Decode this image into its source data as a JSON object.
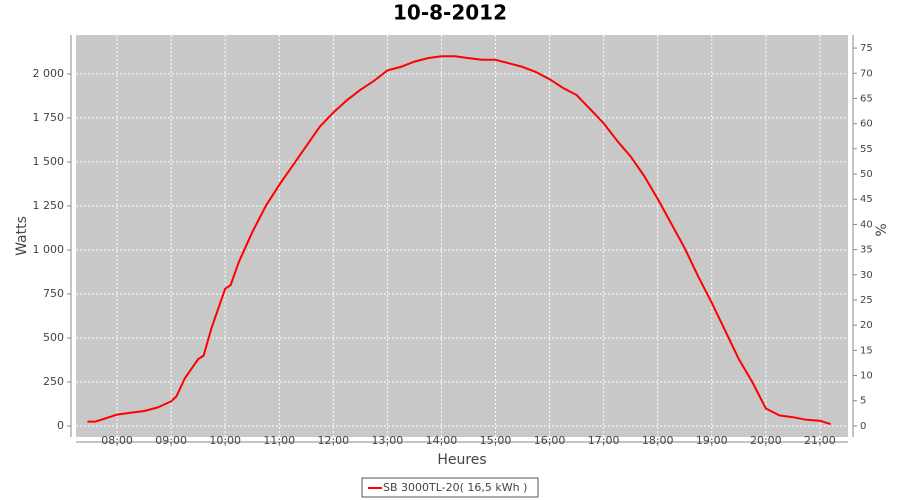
{
  "chart_data": {
    "type": "line",
    "title": "10-8-2012",
    "x_label": "Heures",
    "y_label": "Watts",
    "y2_label": "%",
    "x": [
      7.45,
      7.6,
      7.75,
      8.0,
      8.25,
      8.5,
      8.75,
      9.0,
      9.1,
      9.25,
      9.5,
      9.6,
      9.75,
      10.0,
      10.1,
      10.25,
      10.5,
      10.75,
      11.0,
      11.25,
      11.5,
      11.75,
      12.0,
      12.25,
      12.5,
      12.75,
      13.0,
      13.25,
      13.5,
      13.75,
      14.0,
      14.25,
      14.5,
      14.75,
      15.0,
      15.25,
      15.5,
      15.75,
      16.0,
      16.25,
      16.5,
      16.75,
      17.0,
      17.25,
      17.5,
      17.75,
      18.0,
      18.25,
      18.5,
      18.75,
      19.0,
      19.25,
      19.5,
      19.75,
      20.0,
      20.25,
      20.5,
      20.75,
      21.0,
      21.2
    ],
    "series": [
      {
        "name": "SB 3000TL-20( 16,5 kWh )",
        "color": "#ff0000",
        "values": [
          25,
          25,
          40,
          65,
          75,
          85,
          105,
          140,
          170,
          270,
          380,
          400,
          560,
          780,
          800,
          930,
          1100,
          1250,
          1370,
          1480,
          1590,
          1700,
          1780,
          1850,
          1910,
          1960,
          2020,
          2040,
          2070,
          2090,
          2100,
          2100,
          2090,
          2080,
          2080,
          2060,
          2040,
          2010,
          1970,
          1920,
          1880,
          1800,
          1720,
          1620,
          1530,
          1420,
          1290,
          1150,
          1010,
          850,
          700,
          540,
          380,
          250,
          100,
          60,
          50,
          35,
          30,
          10
        ]
      }
    ],
    "xlim": [
      7.24,
      21.52
    ],
    "xticks": [
      {
        "value": 8,
        "label": "08:00"
      },
      {
        "value": 9,
        "label": "09:00"
      },
      {
        "value": 10,
        "label": "10:00"
      },
      {
        "value": 11,
        "label": "11:00"
      },
      {
        "value": 12,
        "label": "12:00"
      },
      {
        "value": 13,
        "label": "13:00"
      },
      {
        "value": 14,
        "label": "14:00"
      },
      {
        "value": 15,
        "label": "15:00"
      },
      {
        "value": 16,
        "label": "16:00"
      },
      {
        "value": 17,
        "label": "17:00"
      },
      {
        "value": 18,
        "label": "18:00"
      },
      {
        "value": 19,
        "label": "19:00"
      },
      {
        "value": 20,
        "label": "20:00"
      },
      {
        "value": 21,
        "label": "21:00"
      }
    ],
    "ylim": [
      -62.5,
      2221
    ],
    "yticks": [
      0,
      250,
      500,
      750,
      {
        "value": 1000,
        "label": "1 000"
      },
      {
        "value": 1250,
        "label": "1 250"
      },
      {
        "value": 1500,
        "label": "1 500"
      },
      {
        "value": 1750,
        "label": "1 750"
      },
      {
        "value": 2000,
        "label": "2 000"
      }
    ],
    "y2lim": [
      -2.2,
      77.6
    ],
    "y2ticks": [
      0,
      5,
      10,
      15,
      20,
      25,
      30,
      35,
      40,
      45,
      50,
      55,
      60,
      65,
      70,
      75
    ],
    "grid": true,
    "legend": "bottom"
  }
}
